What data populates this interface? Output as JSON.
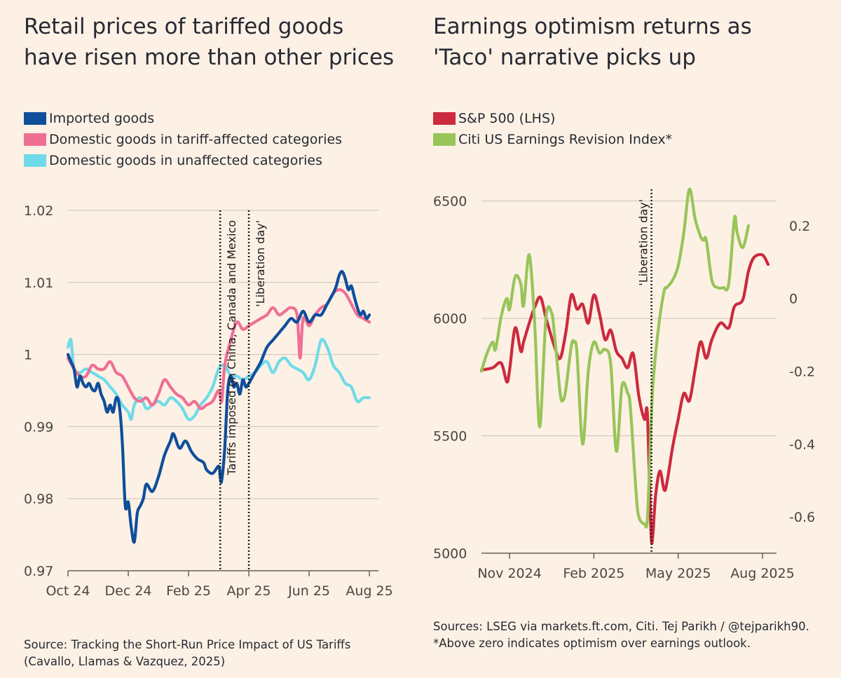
{
  "left_panel": {
    "title": "Retail prices of tariffed goods have risen more than other prices",
    "legend": [
      {
        "label": "Imported goods",
        "color": "#0f4e9b"
      },
      {
        "label": "Domestic goods in tariff-affected categories",
        "color": "#ef6f94"
      },
      {
        "label": "Domestic goods in unaffected categories",
        "color": "#6fdbe8"
      }
    ],
    "source": "Source: Tracking the Short-Run Price Impact of US Tariffs (Cavallo, Llamas & Vazquez, 2025)"
  },
  "right_panel": {
    "title": "Earnings optimism returns as 'Taco' narrative picks up",
    "legend": [
      {
        "label": "S&P 500 (LHS)",
        "color": "#cc2a3e"
      },
      {
        "label": "Citi US Earnings Revision Index*",
        "color": "#98c55a"
      }
    ],
    "source": "Sources: LSEG via markets.ft.com, Citi. Tej Parikh / @tejparikh90. *Above zero indicates optimism over earnings outlook."
  },
  "chart_data": [
    {
      "type": "line",
      "title": "Retail prices of tariffed goods have risen more than other prices",
      "xlabel": "",
      "ylabel": "",
      "x_unit": "months since 1 Oct 2024",
      "xlim": [
        0,
        10.3
      ],
      "ylim": [
        0.97,
        1.02
      ],
      "yticks": [
        0.97,
        0.98,
        0.99,
        1,
        1.01,
        1.02
      ],
      "ytick_labels": [
        "0.97",
        "0.98",
        "0.99",
        "1",
        "1.01",
        "1.02"
      ],
      "xticks": [
        0,
        2,
        4,
        6,
        8,
        10
      ],
      "xtick_labels": [
        "Oct 24",
        "Dec 24",
        "Feb 25",
        "Apr 25",
        "Jun 25",
        "Aug 25"
      ],
      "grid": true,
      "events": [
        {
          "x": 5.05,
          "label": "Tariffs imposed on China, Canada and Mexico"
        },
        {
          "x": 6.0,
          "label": "'Liberation day'"
        }
      ],
      "series": [
        {
          "name": "Imported goods",
          "color": "#0f4e9b",
          "x": [
            0.0,
            0.1,
            0.2,
            0.3,
            0.4,
            0.5,
            0.6,
            0.7,
            0.8,
            0.9,
            1.0,
            1.1,
            1.2,
            1.3,
            1.4,
            1.5,
            1.6,
            1.7,
            1.8,
            1.9,
            2.0,
            2.1,
            2.2,
            2.3,
            2.4,
            2.5,
            2.6,
            2.8,
            3.0,
            3.2,
            3.4,
            3.5,
            3.7,
            3.9,
            4.1,
            4.3,
            4.5,
            4.6,
            4.8,
            5.0,
            5.05,
            5.1,
            5.2,
            5.3,
            5.4,
            5.5,
            5.6,
            5.7,
            5.8,
            5.9,
            6.0,
            6.2,
            6.4,
            6.6,
            6.8,
            7.0,
            7.2,
            7.4,
            7.6,
            7.8,
            8.0,
            8.2,
            8.4,
            8.6,
            8.8,
            8.9,
            9.0,
            9.1,
            9.2,
            9.3,
            9.4,
            9.5,
            9.6,
            9.7,
            9.8,
            9.9,
            10.0
          ],
          "values": [
            1.0,
            0.999,
            0.998,
            0.9955,
            0.997,
            0.996,
            0.9955,
            0.996,
            0.9952,
            0.995,
            0.996,
            0.9945,
            0.9935,
            0.992,
            0.993,
            0.992,
            0.994,
            0.993,
            0.988,
            0.979,
            0.9795,
            0.976,
            0.974,
            0.978,
            0.979,
            0.98,
            0.982,
            0.981,
            0.983,
            0.986,
            0.988,
            0.989,
            0.987,
            0.988,
            0.9865,
            0.9855,
            0.985,
            0.984,
            0.9835,
            0.9845,
            0.983,
            0.9825,
            0.987,
            0.995,
            0.997,
            0.9955,
            0.996,
            0.9945,
            0.9965,
            0.9955,
            0.996,
            0.9975,
            0.999,
            1.001,
            1.002,
            1.003,
            1.004,
            1.005,
            1.0045,
            1.006,
            1.0045,
            1.0055,
            1.0055,
            1.007,
            1.0085,
            1.0095,
            1.011,
            1.0115,
            1.0105,
            1.009,
            1.0095,
            1.008,
            1.0065,
            1.0055,
            1.006,
            1.005,
            1.0055
          ]
        },
        {
          "name": "Domestic goods in tariff-affected categories",
          "color": "#ef6f94",
          "x": [
            0.0,
            0.2,
            0.4,
            0.6,
            0.8,
            1.0,
            1.2,
            1.4,
            1.6,
            1.8,
            2.0,
            2.2,
            2.4,
            2.6,
            2.8,
            3.0,
            3.2,
            3.4,
            3.6,
            3.8,
            4.0,
            4.2,
            4.4,
            4.6,
            4.8,
            5.0,
            5.1,
            5.2,
            5.4,
            5.6,
            5.8,
            6.0,
            6.2,
            6.4,
            6.6,
            6.8,
            7.0,
            7.2,
            7.4,
            7.6,
            7.7,
            7.8,
            8.0,
            8.2,
            8.4,
            8.6,
            8.8,
            9.0,
            9.2,
            9.4,
            9.6,
            9.8,
            10.0
          ],
          "values": [
            0.9995,
            0.998,
            0.997,
            0.997,
            0.9985,
            0.998,
            0.998,
            0.999,
            0.9975,
            0.997,
            0.9955,
            0.994,
            0.9935,
            0.994,
            0.993,
            0.9945,
            0.9965,
            0.9955,
            0.9945,
            0.994,
            0.993,
            0.9935,
            0.9925,
            0.993,
            0.9935,
            0.995,
            0.9935,
            0.9985,
            1.002,
            1.0045,
            1.0035,
            1.004,
            1.0045,
            1.005,
            1.0055,
            1.0065,
            1.0055,
            1.006,
            1.0065,
            1.0055,
            0.9995,
            1.005,
            1.004,
            1.0055,
            1.0065,
            1.007,
            1.0085,
            1.009,
            1.0085,
            1.007,
            1.0055,
            1.005,
            1.0045
          ]
        },
        {
          "name": "Domestic goods in unaffected categories",
          "color": "#6fdbe8",
          "x": [
            0.0,
            0.1,
            0.2,
            0.4,
            0.6,
            0.8,
            1.0,
            1.2,
            1.4,
            1.6,
            1.8,
            2.0,
            2.1,
            2.2,
            2.4,
            2.6,
            2.8,
            3.0,
            3.2,
            3.4,
            3.6,
            3.8,
            4.0,
            4.2,
            4.4,
            4.6,
            4.8,
            5.0,
            5.2,
            5.4,
            5.6,
            5.8,
            6.0,
            6.2,
            6.4,
            6.6,
            6.8,
            7.0,
            7.2,
            7.4,
            7.6,
            7.8,
            8.0,
            8.2,
            8.4,
            8.6,
            8.8,
            9.0,
            9.2,
            9.4,
            9.6,
            9.8,
            10.0
          ],
          "values": [
            1.001,
            1.002,
            0.998,
            0.9975,
            0.998,
            0.9975,
            0.997,
            0.9965,
            0.9955,
            0.9945,
            0.993,
            0.992,
            0.991,
            0.993,
            0.994,
            0.9925,
            0.993,
            0.9935,
            0.993,
            0.994,
            0.9935,
            0.9925,
            0.991,
            0.9915,
            0.993,
            0.994,
            0.9955,
            0.998,
            0.9985,
            0.997,
            0.997,
            0.9965,
            0.997,
            0.9975,
            0.9985,
            0.999,
            0.9975,
            0.999,
            0.9995,
            0.9985,
            0.998,
            0.9975,
            0.9965,
            0.9985,
            1.002,
            1.001,
            0.9985,
            0.9975,
            0.996,
            0.9955,
            0.9935,
            0.994,
            0.994
          ]
        }
      ]
    },
    {
      "type": "line",
      "title": "Earnings optimism returns as 'Taco' narrative picks up",
      "xlabel": "",
      "ylabel": "",
      "x_unit": "months since 1 Oct 2024",
      "xlim": [
        0,
        10.5
      ],
      "ylim_left": [
        5000,
        6550
      ],
      "ylim_right": [
        -0.7,
        0.3
      ],
      "yticks_left": [
        5000,
        5500,
        6000,
        6500
      ],
      "ytick_labels_left": [
        "5000",
        "5500",
        "6000",
        "6500"
      ],
      "yticks_right": [
        -0.6,
        -0.4,
        -0.2,
        0,
        0.2
      ],
      "ytick_labels_right": [
        "-0.6",
        "-0.4",
        "-0.2",
        "0",
        "0.2"
      ],
      "xticks": [
        1,
        4,
        7,
        10
      ],
      "xtick_labels": [
        "Nov 2024",
        "Feb 2025",
        "May 2025",
        "Aug 2025"
      ],
      "grid": true,
      "events": [
        {
          "x": 6.05,
          "label": "'Liberation day'"
        }
      ],
      "series": [
        {
          "name": "S&P 500 (LHS)",
          "axis": "left",
          "color": "#cc2a3e",
          "x": [
            0.0,
            0.4,
            0.7,
            0.9,
            1.0,
            1.2,
            1.4,
            1.5,
            1.7,
            1.9,
            2.1,
            2.3,
            2.6,
            2.8,
            3.0,
            3.2,
            3.4,
            3.6,
            3.8,
            4.0,
            4.2,
            4.4,
            4.6,
            4.8,
            5.0,
            5.2,
            5.4,
            5.6,
            5.8,
            5.9,
            6.0,
            6.05,
            6.1,
            6.2,
            6.35,
            6.5,
            6.6,
            6.8,
            7.0,
            7.2,
            7.4,
            7.6,
            7.8,
            8.0,
            8.2,
            8.5,
            8.8,
            9.0,
            9.3,
            9.5,
            9.7,
            10.0,
            10.2
          ],
          "values": [
            5780,
            5790,
            5810,
            5730,
            5780,
            5960,
            5860,
            5900,
            5980,
            6050,
            6090,
            6000,
            5880,
            5830,
            5940,
            6100,
            6040,
            6060,
            5980,
            6100,
            6020,
            5910,
            5950,
            5860,
            5830,
            5790,
            5850,
            5670,
            5570,
            5600,
            5200,
            5050,
            5080,
            5250,
            5350,
            5270,
            5300,
            5450,
            5570,
            5680,
            5650,
            5780,
            5900,
            5830,
            5910,
            5980,
            5960,
            6050,
            6080,
            6200,
            6260,
            6270,
            6230
          ]
        },
        {
          "name": "Citi US Earnings Revision Index*",
          "axis": "right",
          "color": "#98c55a",
          "x": [
            0.0,
            0.2,
            0.4,
            0.5,
            0.7,
            0.9,
            1.0,
            1.2,
            1.4,
            1.5,
            1.7,
            1.9,
            2.0,
            2.1,
            2.3,
            2.5,
            2.6,
            2.8,
            2.9,
            3.0,
            3.2,
            3.3,
            3.4,
            3.6,
            3.8,
            4.0,
            4.2,
            4.4,
            4.6,
            4.8,
            5.0,
            5.2,
            5.3,
            5.5,
            5.6,
            5.8,
            5.9,
            6.0,
            6.1,
            6.3,
            6.5,
            6.6,
            6.8,
            7.0,
            7.2,
            7.4,
            7.6,
            7.8,
            7.9,
            8.0,
            8.2,
            8.4,
            8.6,
            8.8,
            9.0,
            9.1,
            9.3,
            9.5
          ],
          "values": [
            -0.2,
            -0.15,
            -0.12,
            -0.14,
            -0.05,
            0.0,
            -0.03,
            0.06,
            0.04,
            -0.02,
            0.12,
            -0.08,
            -0.28,
            -0.34,
            -0.05,
            -0.04,
            -0.1,
            -0.26,
            -0.28,
            -0.25,
            -0.13,
            -0.12,
            -0.15,
            -0.4,
            -0.2,
            -0.12,
            -0.15,
            -0.14,
            -0.18,
            -0.42,
            -0.24,
            -0.26,
            -0.3,
            -0.53,
            -0.6,
            -0.62,
            -0.61,
            -0.42,
            -0.24,
            -0.08,
            0.02,
            0.03,
            0.05,
            0.09,
            0.18,
            0.3,
            0.22,
            0.17,
            0.16,
            0.16,
            0.05,
            0.03,
            0.03,
            0.04,
            0.22,
            0.18,
            0.14,
            0.2
          ]
        }
      ]
    }
  ]
}
